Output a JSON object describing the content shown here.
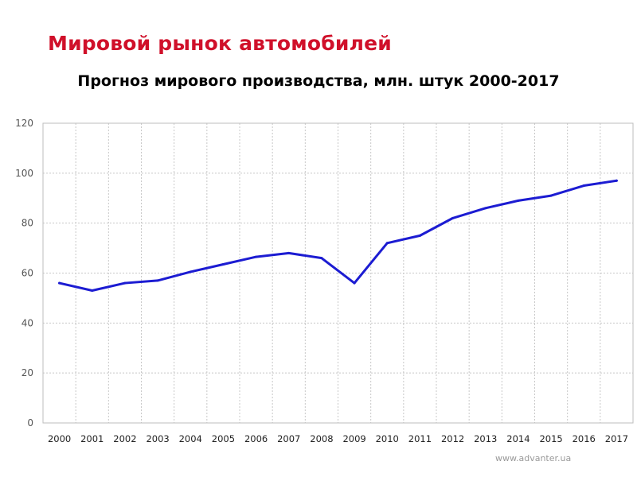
{
  "page": {
    "heading": "Мировой рынок автомобилей",
    "footer": "www.advanter.ua",
    "accent_color": "#d0102a"
  },
  "chart_data": {
    "type": "line",
    "title": "Прогноз мирового производства, млн. штук 2000-2017",
    "xlabel": "",
    "ylabel": "",
    "categories": [
      "2000",
      "2001",
      "2002",
      "2003",
      "2004",
      "2005",
      "2006",
      "2007",
      "2008",
      "2009",
      "2010",
      "2011",
      "2012",
      "2013",
      "2014",
      "2015",
      "2016",
      "2017"
    ],
    "series": [
      {
        "values": [
          56,
          53,
          56,
          57,
          60.5,
          63.5,
          66.5,
          68,
          66,
          56,
          72,
          75,
          82,
          86,
          89,
          91,
          95,
          97
        ],
        "color": "#1c1cd2"
      }
    ],
    "ylim": [
      0,
      120
    ],
    "yticks": [
      0,
      20,
      40,
      60,
      80,
      100,
      120
    ],
    "grid": true,
    "legend": "none"
  }
}
